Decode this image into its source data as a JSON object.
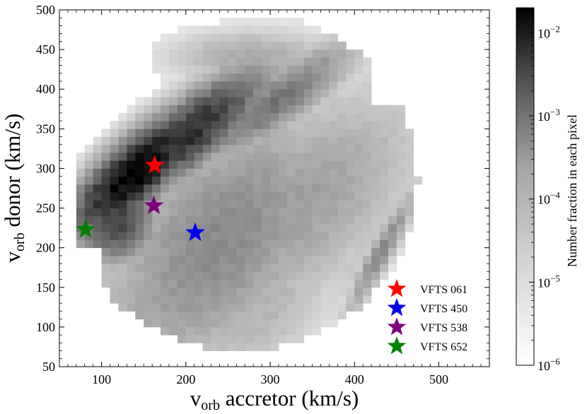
{
  "chart_data": {
    "type": "heatmap",
    "xlabel": "v",
    "xlabel_sub": "orb",
    "xlabel_rest": " accretor (km/s)",
    "ylabel": "v",
    "ylabel_sub": "orb",
    "ylabel_rest": " donor (km/s)",
    "xlim": [
      50,
      560
    ],
    "ylim": [
      50,
      500
    ],
    "xticks": [
      100,
      200,
      300,
      400,
      500
    ],
    "yticks": [
      50,
      100,
      150,
      200,
      250,
      300,
      350,
      400,
      450,
      500
    ],
    "colorbar": {
      "label": "Number fraction in each pixel",
      "scale": "log",
      "range": [
        1e-06,
        0.02
      ],
      "ticks": [
        {
          "value": 0.01,
          "base": "10",
          "exp": "−2"
        },
        {
          "value": 0.001,
          "base": "10",
          "exp": "−3"
        },
        {
          "value": 0.0001,
          "base": "10",
          "exp": "−4"
        },
        {
          "value": 1e-05,
          "base": "10",
          "exp": "−5"
        },
        {
          "value": 1e-06,
          "base": "10",
          "exp": "−6"
        }
      ],
      "colormap": "Greys"
    },
    "stars": [
      {
        "name": "VFTS 061",
        "x": 163,
        "y": 304,
        "color": "#ff0000"
      },
      {
        "name": "VFTS 450",
        "x": 211,
        "y": 219,
        "color": "#0000ee"
      },
      {
        "name": "VFTS 538",
        "x": 162,
        "y": 253,
        "color": "#800080"
      },
      {
        "name": "VFTS 652",
        "x": 81,
        "y": 223,
        "color": "#008000"
      }
    ],
    "legend_position": "lower-right"
  }
}
